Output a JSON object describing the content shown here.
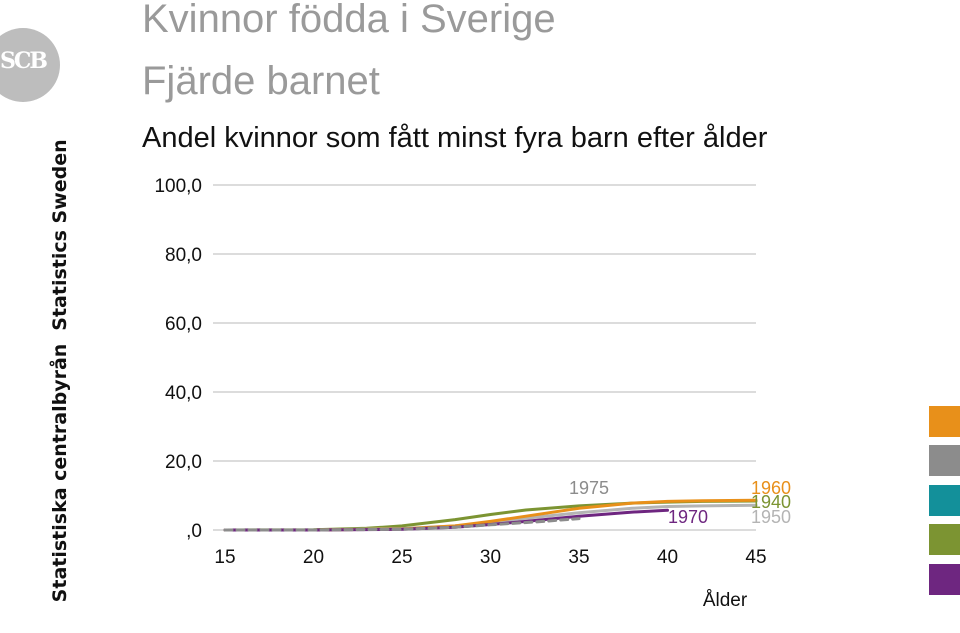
{
  "branding": {
    "logo_text": "SCB",
    "vertical_text_en": "Statistics Sweden",
    "vertical_text_sv": "Statistiska centralbyrån"
  },
  "title_line1": "Kvinnor födda i Sverige",
  "title_line2": "Fjärde barnet",
  "subtitle": "Andel kvinnor som fått minst fyra barn efter ålder",
  "swatches": [
    "#E8901A",
    "#8C8C8C",
    "#13909A",
    "#7C9432",
    "#6E2680"
  ],
  "chart_data": {
    "type": "line",
    "title": "Andel kvinnor som fått minst fyra barn efter ålder",
    "xlabel": "Ålder",
    "ylabel": "",
    "xlim": [
      15,
      45
    ],
    "ylim": [
      0,
      100
    ],
    "x_ticks": [
      15,
      20,
      25,
      30,
      35,
      40,
      45
    ],
    "x_tick_labels": [
      "15",
      "20",
      "25",
      "30",
      "35",
      "40",
      "45"
    ],
    "y_ticks": [
      0,
      20,
      40,
      60,
      80,
      100
    ],
    "y_tick_labels": [
      ",0",
      "20,0",
      "40,0",
      "60,0",
      "80,0",
      "100,0"
    ],
    "grid": "horizontal",
    "series": [
      {
        "name": "1940",
        "color": "#7C9432",
        "dashed": false,
        "x": [
          15,
          20,
          23,
          25,
          28,
          30,
          32,
          35,
          38,
          40,
          42,
          45
        ],
        "y": [
          0,
          0.1,
          0.5,
          1.2,
          3.0,
          4.5,
          5.8,
          7.0,
          7.8,
          8.1,
          8.3,
          8.4
        ]
      },
      {
        "name": "1950",
        "color": "#B4B4B4",
        "dashed": false,
        "x": [
          15,
          20,
          25,
          28,
          30,
          32,
          35,
          38,
          40,
          42,
          45
        ],
        "y": [
          0,
          0,
          0.4,
          1.2,
          2.2,
          3.4,
          5.0,
          6.3,
          6.8,
          7.0,
          7.2
        ]
      },
      {
        "name": "1960",
        "color": "#E8901A",
        "dashed": false,
        "x": [
          15,
          20,
          25,
          28,
          30,
          32,
          35,
          38,
          40,
          42,
          45
        ],
        "y": [
          0,
          0,
          0.3,
          1.2,
          2.5,
          4.0,
          6.3,
          7.8,
          8.3,
          8.5,
          8.6
        ]
      },
      {
        "name": "1970",
        "color": "#6E2680",
        "dashed": false,
        "x": [
          15,
          20,
          25,
          28,
          30,
          32,
          35,
          38,
          40
        ],
        "y": [
          0,
          0,
          0.2,
          0.8,
          1.6,
          2.5,
          4.0,
          5.2,
          5.7
        ]
      },
      {
        "name": "1975",
        "color": "#8C8C8C",
        "dashed": true,
        "x": [
          15,
          20,
          25,
          28,
          30,
          33,
          35
        ],
        "y": [
          0,
          0,
          0.2,
          0.8,
          1.5,
          2.5,
          3.3
        ]
      }
    ],
    "annotations": [
      {
        "text": "1975",
        "color": "#8C8C8C"
      },
      {
        "text": "1960",
        "color": "#E8901A"
      },
      {
        "text": "1940",
        "color": "#7C9432"
      },
      {
        "text": "1970",
        "color": "#6E2680"
      },
      {
        "text": "1950",
        "color": "#B4B4B4"
      }
    ]
  }
}
